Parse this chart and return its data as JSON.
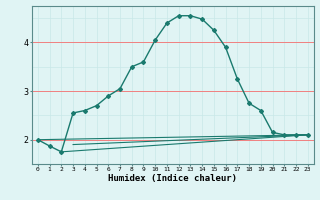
{
  "xlabel": "Humidex (Indice chaleur)",
  "ylabel": "",
  "bg_color": "#e0f4f4",
  "grid_color_minor": "#c8e8e8",
  "grid_color_major": "#f08080",
  "line_color": "#1a7a6e",
  "xlim": [
    -0.5,
    23.5
  ],
  "ylim": [
    1.5,
    4.75
  ],
  "xticks": [
    0,
    1,
    2,
    3,
    4,
    5,
    6,
    7,
    8,
    9,
    10,
    11,
    12,
    13,
    14,
    15,
    16,
    17,
    18,
    19,
    20,
    21,
    22,
    23
  ],
  "yticks": [
    2,
    3,
    4
  ],
  "curve1_x": [
    0,
    1,
    2,
    3,
    4,
    5,
    6,
    7,
    8,
    9,
    10,
    11,
    12,
    13,
    14,
    15,
    16,
    17,
    18,
    19,
    20,
    21,
    22,
    23
  ],
  "curve1_y": [
    2.0,
    1.87,
    1.75,
    2.55,
    2.6,
    2.7,
    2.9,
    3.05,
    3.5,
    3.6,
    4.05,
    4.4,
    4.55,
    4.55,
    4.48,
    4.25,
    3.9,
    3.25,
    2.75,
    2.6,
    2.15,
    2.1,
    2.1,
    2.1
  ],
  "line2_x": [
    0,
    23
  ],
  "line2_y": [
    2.0,
    2.1
  ],
  "line3_x": [
    2,
    23
  ],
  "line3_y": [
    1.75,
    2.1
  ],
  "line4_x": [
    3,
    23
  ],
  "line4_y": [
    1.9,
    2.1
  ],
  "hgrid_y": [
    1.5,
    2.0,
    2.5,
    3.0,
    3.5,
    4.0,
    4.5
  ],
  "hgrid_major": [
    2.0,
    3.0,
    4.0
  ]
}
